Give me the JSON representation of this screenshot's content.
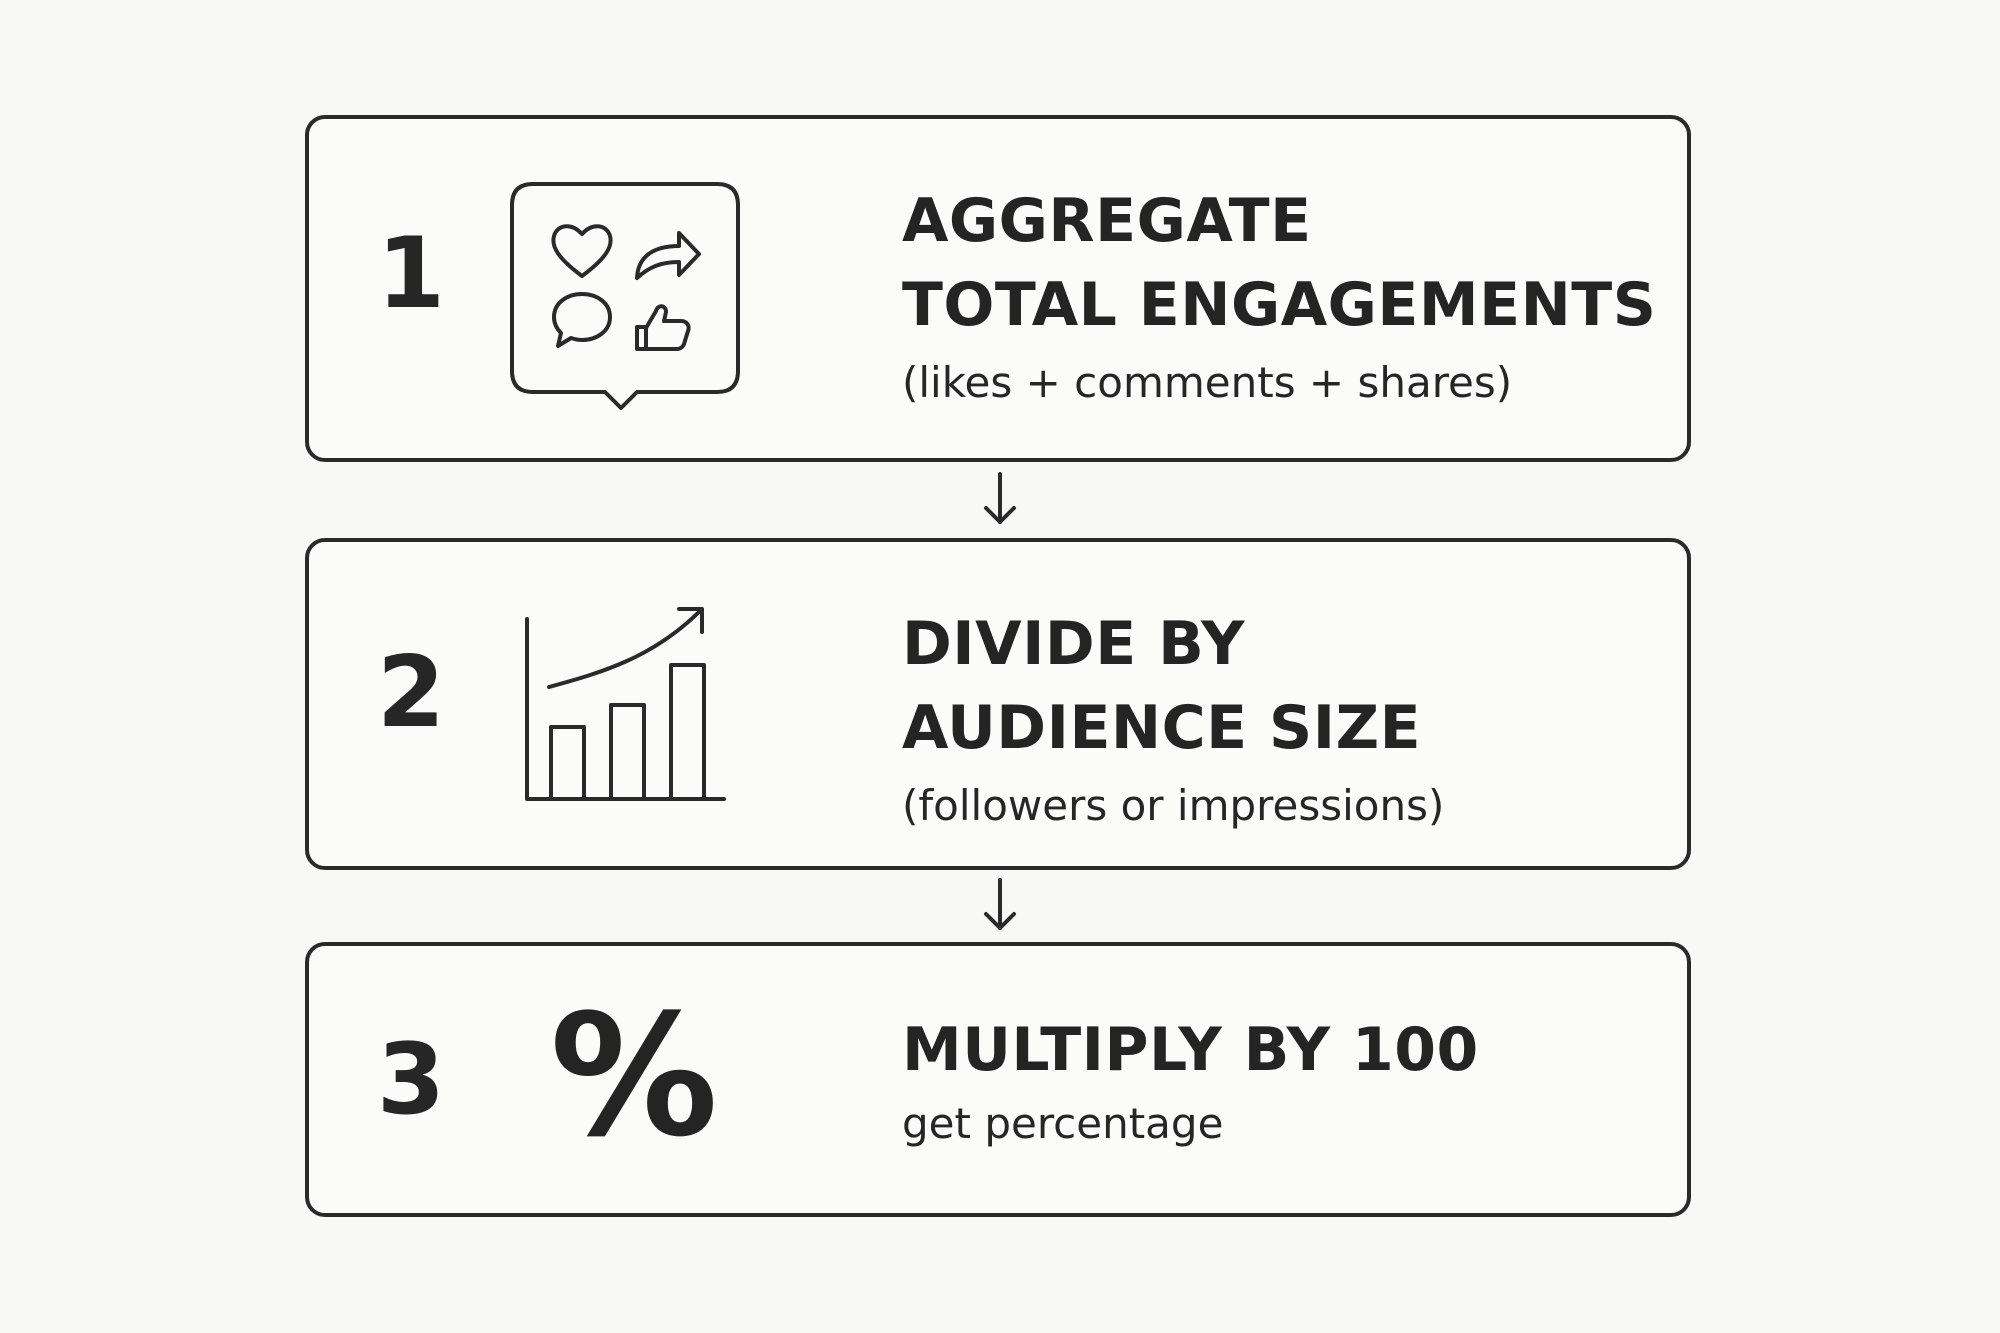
{
  "steps": [
    {
      "number": "1",
      "title_line1": "AGGREGATE",
      "title_line2": "TOTAL ENGAGEMENTS",
      "subtitle": "(likes + comments + shares)",
      "icon": "engagement-bubble-icon"
    },
    {
      "number": "2",
      "title_line1": "DIVIDE BY",
      "title_line2": "AUDIENCE SIZE",
      "subtitle": "(followers or impressions)",
      "icon": "growth-bar-chart-icon"
    },
    {
      "number": "3",
      "title_line1": "MULTIPLY BY 100",
      "subtitle": "get percentage",
      "icon": "percent-icon",
      "icon_glyph": "%"
    }
  ],
  "connectors": [
    "down-arrow-icon",
    "down-arrow-icon"
  ],
  "colors": {
    "background": "#f8f8f7",
    "stroke": "#2a2a2a",
    "text": "#242424"
  }
}
